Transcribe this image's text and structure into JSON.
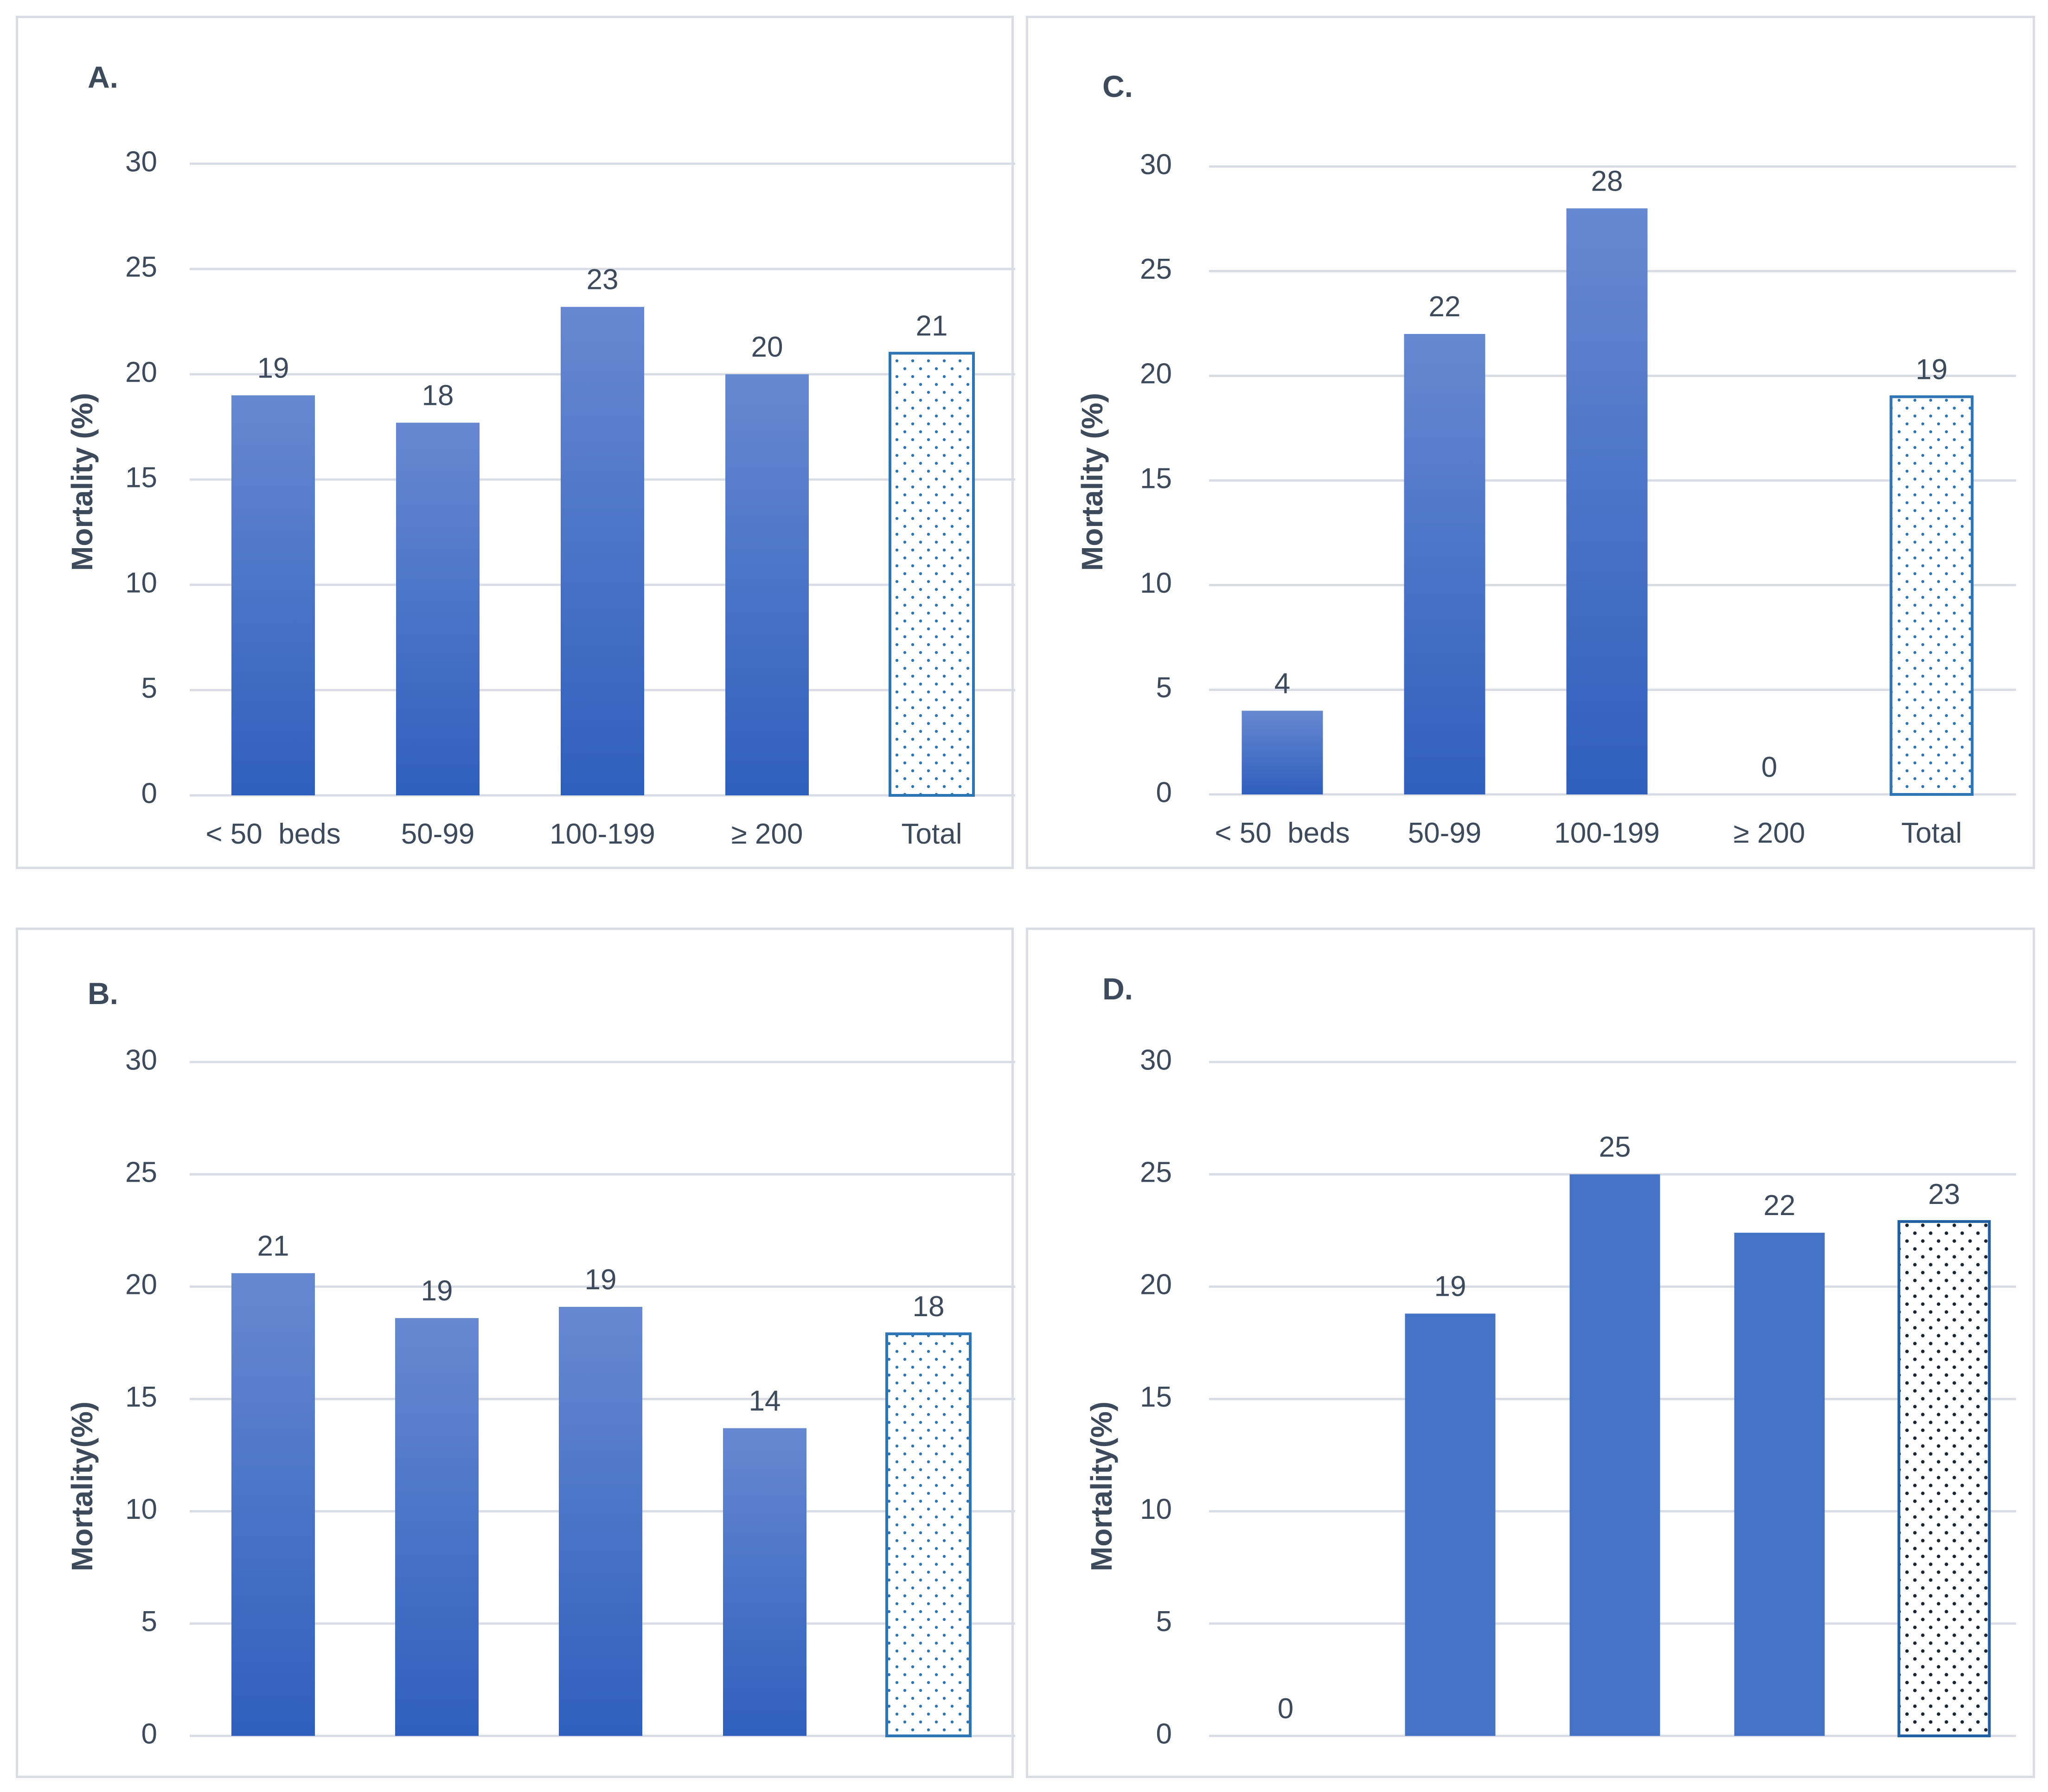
{
  "chart_data": [
    {
      "panel": "A.",
      "type": "bar",
      "categories": [
        "< 50  beds",
        "50-99",
        "100-199",
        "≥ 200",
        "Total"
      ],
      "values": [
        19,
        17.7,
        23.2,
        20,
        21
      ],
      "data_labels": [
        "19",
        "18",
        "23",
        "20",
        "21"
      ],
      "ylabel": "Mortality (%)",
      "ylim": [
        0,
        30
      ],
      "yticks": [
        0,
        5,
        10,
        15,
        20,
        25,
        30
      ],
      "bar_style": "gradient",
      "total_style": "dotted-light"
    },
    {
      "panel": "C.",
      "type": "bar",
      "categories": [
        "< 50  beds",
        "50-99",
        "100-199",
        "≥ 200",
        "Total"
      ],
      "values": [
        4,
        22,
        28,
        0,
        19
      ],
      "data_labels": [
        "4",
        "22",
        "28",
        "0",
        "19"
      ],
      "ylabel": "Mortality (%)",
      "ylim": [
        0,
        30
      ],
      "yticks": [
        0,
        5,
        10,
        15,
        20,
        25,
        30
      ],
      "bar_style": "gradient",
      "total_style": "dotted-light"
    },
    {
      "panel": "B.",
      "type": "bar",
      "categories": [
        "",
        "",
        "",
        "",
        ""
      ],
      "values": [
        20.6,
        18.6,
        19.1,
        13.7,
        17.9
      ],
      "data_labels": [
        "21",
        "19",
        "19",
        "14",
        "18"
      ],
      "ylabel": "Mortality(%)",
      "ylim": [
        0,
        30
      ],
      "yticks": [
        0,
        5,
        10,
        15,
        20,
        25,
        30
      ],
      "bar_style": "gradient",
      "total_style": "dotted-light"
    },
    {
      "panel": "D.",
      "type": "bar",
      "categories": [
        "",
        "",
        "",
        "",
        ""
      ],
      "values": [
        0,
        18.8,
        25,
        22.4,
        22.9
      ],
      "data_labels": [
        "0",
        "19",
        "25",
        "22",
        "23"
      ],
      "ylabel": "Mortality(%)",
      "ylim": [
        0,
        30
      ],
      "yticks": [
        0,
        5,
        10,
        15,
        20,
        25,
        30
      ],
      "bar_style": "solid",
      "total_style": "dotted-dark"
    }
  ],
  "colors": {
    "bar_top": "#6688d0",
    "bar_bottom": "#2f5fbd",
    "bar_solid": "#4472c4",
    "total_edge_light": "#2e75b6",
    "total_edge_dark": "#1f5fa0",
    "text": "#3d4a5c",
    "grid": "#d9dce4"
  }
}
